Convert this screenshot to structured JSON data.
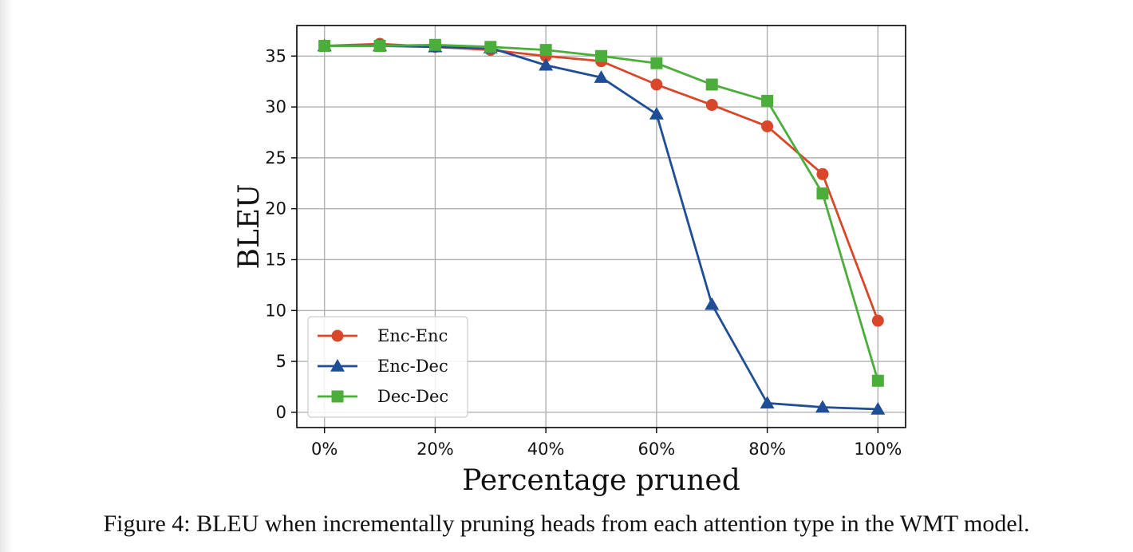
{
  "chart_data": {
    "type": "line",
    "title": "",
    "xlabel": "Percentage pruned",
    "ylabel": "BLEU",
    "x": [
      0,
      10,
      20,
      30,
      40,
      50,
      60,
      70,
      80,
      90,
      100
    ],
    "xlim": [
      -5,
      105
    ],
    "ylim": [
      -1.5,
      38
    ],
    "xticks": [
      0,
      20,
      40,
      60,
      80,
      100
    ],
    "xtick_labels": [
      "0%",
      "20%",
      "40%",
      "60%",
      "80%",
      "100%"
    ],
    "yticks": [
      0,
      5,
      10,
      15,
      20,
      25,
      30,
      35
    ],
    "ytick_labels": [
      "0",
      "5",
      "10",
      "15",
      "20",
      "25",
      "30",
      "35"
    ],
    "grid": true,
    "legend_position": "lower-left",
    "series": [
      {
        "name": "Enc-Enc",
        "color": "#d9472b",
        "marker": "circle",
        "values": [
          36.0,
          36.2,
          35.9,
          35.6,
          35.0,
          34.5,
          32.2,
          30.2,
          28.1,
          23.4,
          9.0
        ]
      },
      {
        "name": "Enc-Dec",
        "color": "#1f4e96",
        "marker": "triangle",
        "values": [
          36.0,
          36.0,
          35.9,
          35.8,
          34.1,
          32.9,
          29.3,
          10.6,
          0.9,
          0.5,
          0.3
        ]
      },
      {
        "name": "Dec-Dec",
        "color": "#4cae3a",
        "marker": "square",
        "values": [
          36.0,
          36.0,
          36.1,
          35.9,
          35.6,
          35.0,
          34.3,
          32.2,
          30.6,
          21.5,
          3.1
        ]
      }
    ]
  },
  "caption": "Figure 4:  BLEU when incrementally pruning heads from each attention type in the WMT model."
}
